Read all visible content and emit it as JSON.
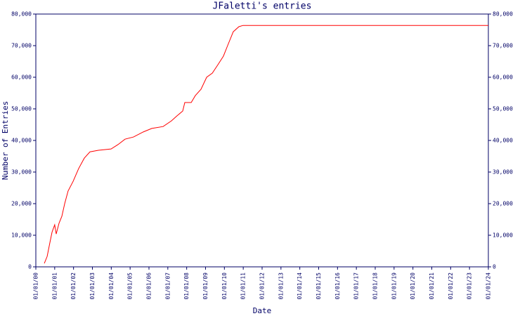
{
  "chart_data": {
    "type": "line",
    "title": "JFaletti's entries",
    "xlabel": "Date",
    "ylabel": "Number of Entries",
    "x": [
      0.45,
      0.6,
      0.75,
      0.86,
      1.0,
      1.08,
      1.23,
      1.38,
      1.53,
      1.71,
      1.98,
      2.27,
      2.57,
      2.87,
      3.32,
      3.99,
      4.36,
      4.73,
      5.18,
      5.7,
      6.15,
      6.75,
      7.19,
      7.49,
      7.79,
      7.9,
      8.24,
      8.46,
      8.76,
      9.06,
      9.36,
      9.66,
      9.95,
      10.17,
      10.47,
      10.77,
      10.99,
      24
    ],
    "series": [
      {
        "name": "entries",
        "color": "#ff0000",
        "values": [
          1100,
          3300,
          7800,
          11000,
          13300,
          10400,
          13800,
          16000,
          20000,
          24000,
          27100,
          31100,
          34400,
          36400,
          36900,
          37300,
          38700,
          40400,
          41100,
          42700,
          43800,
          44400,
          46200,
          47800,
          49300,
          52000,
          52000,
          54200,
          56200,
          60000,
          61300,
          64000,
          66700,
          70000,
          74400,
          76000,
          76400,
          76400
        ]
      }
    ],
    "xlim": [
      0,
      24
    ],
    "xticks": [
      {
        "value": 0,
        "label": "01/01/00"
      },
      {
        "value": 1,
        "label": "01/01/01"
      },
      {
        "value": 2,
        "label": "01/01/02"
      },
      {
        "value": 3,
        "label": "01/01/03"
      },
      {
        "value": 4,
        "label": "01/01/04"
      },
      {
        "value": 5,
        "label": "01/01/05"
      },
      {
        "value": 6,
        "label": "01/01/06"
      },
      {
        "value": 7,
        "label": "01/01/07"
      },
      {
        "value": 8,
        "label": "01/01/08"
      },
      {
        "value": 9,
        "label": "01/01/09"
      },
      {
        "value": 10,
        "label": "01/01/10"
      },
      {
        "value": 11,
        "label": "01/01/11"
      },
      {
        "value": 12,
        "label": "01/01/12"
      },
      {
        "value": 13,
        "label": "01/01/13"
      },
      {
        "value": 14,
        "label": "01/01/14"
      },
      {
        "value": 15,
        "label": "01/01/15"
      },
      {
        "value": 16,
        "label": "01/01/16"
      },
      {
        "value": 17,
        "label": "01/01/17"
      },
      {
        "value": 18,
        "label": "01/01/18"
      },
      {
        "value": 19,
        "label": "01/01/19"
      },
      {
        "value": 20,
        "label": "01/01/20"
      },
      {
        "value": 21,
        "label": "01/01/21"
      },
      {
        "value": 22,
        "label": "01/01/22"
      },
      {
        "value": 23,
        "label": "01/01/23"
      },
      {
        "value": 24,
        "label": "01/01/24"
      }
    ],
    "ylim": [
      0,
      80000
    ],
    "yticks": [
      0,
      {
        "value": 10000,
        "label": "10,000"
      },
      {
        "value": 20000,
        "label": "20,000"
      },
      {
        "value": 30000,
        "label": "30,000"
      },
      {
        "value": 40000,
        "label": "40,000"
      },
      {
        "value": 50000,
        "label": "50,000"
      },
      {
        "value": 60000,
        "label": "60,000"
      },
      {
        "value": 70000,
        "label": "70,000"
      },
      {
        "value": 80000,
        "label": "80,000"
      }
    ]
  }
}
